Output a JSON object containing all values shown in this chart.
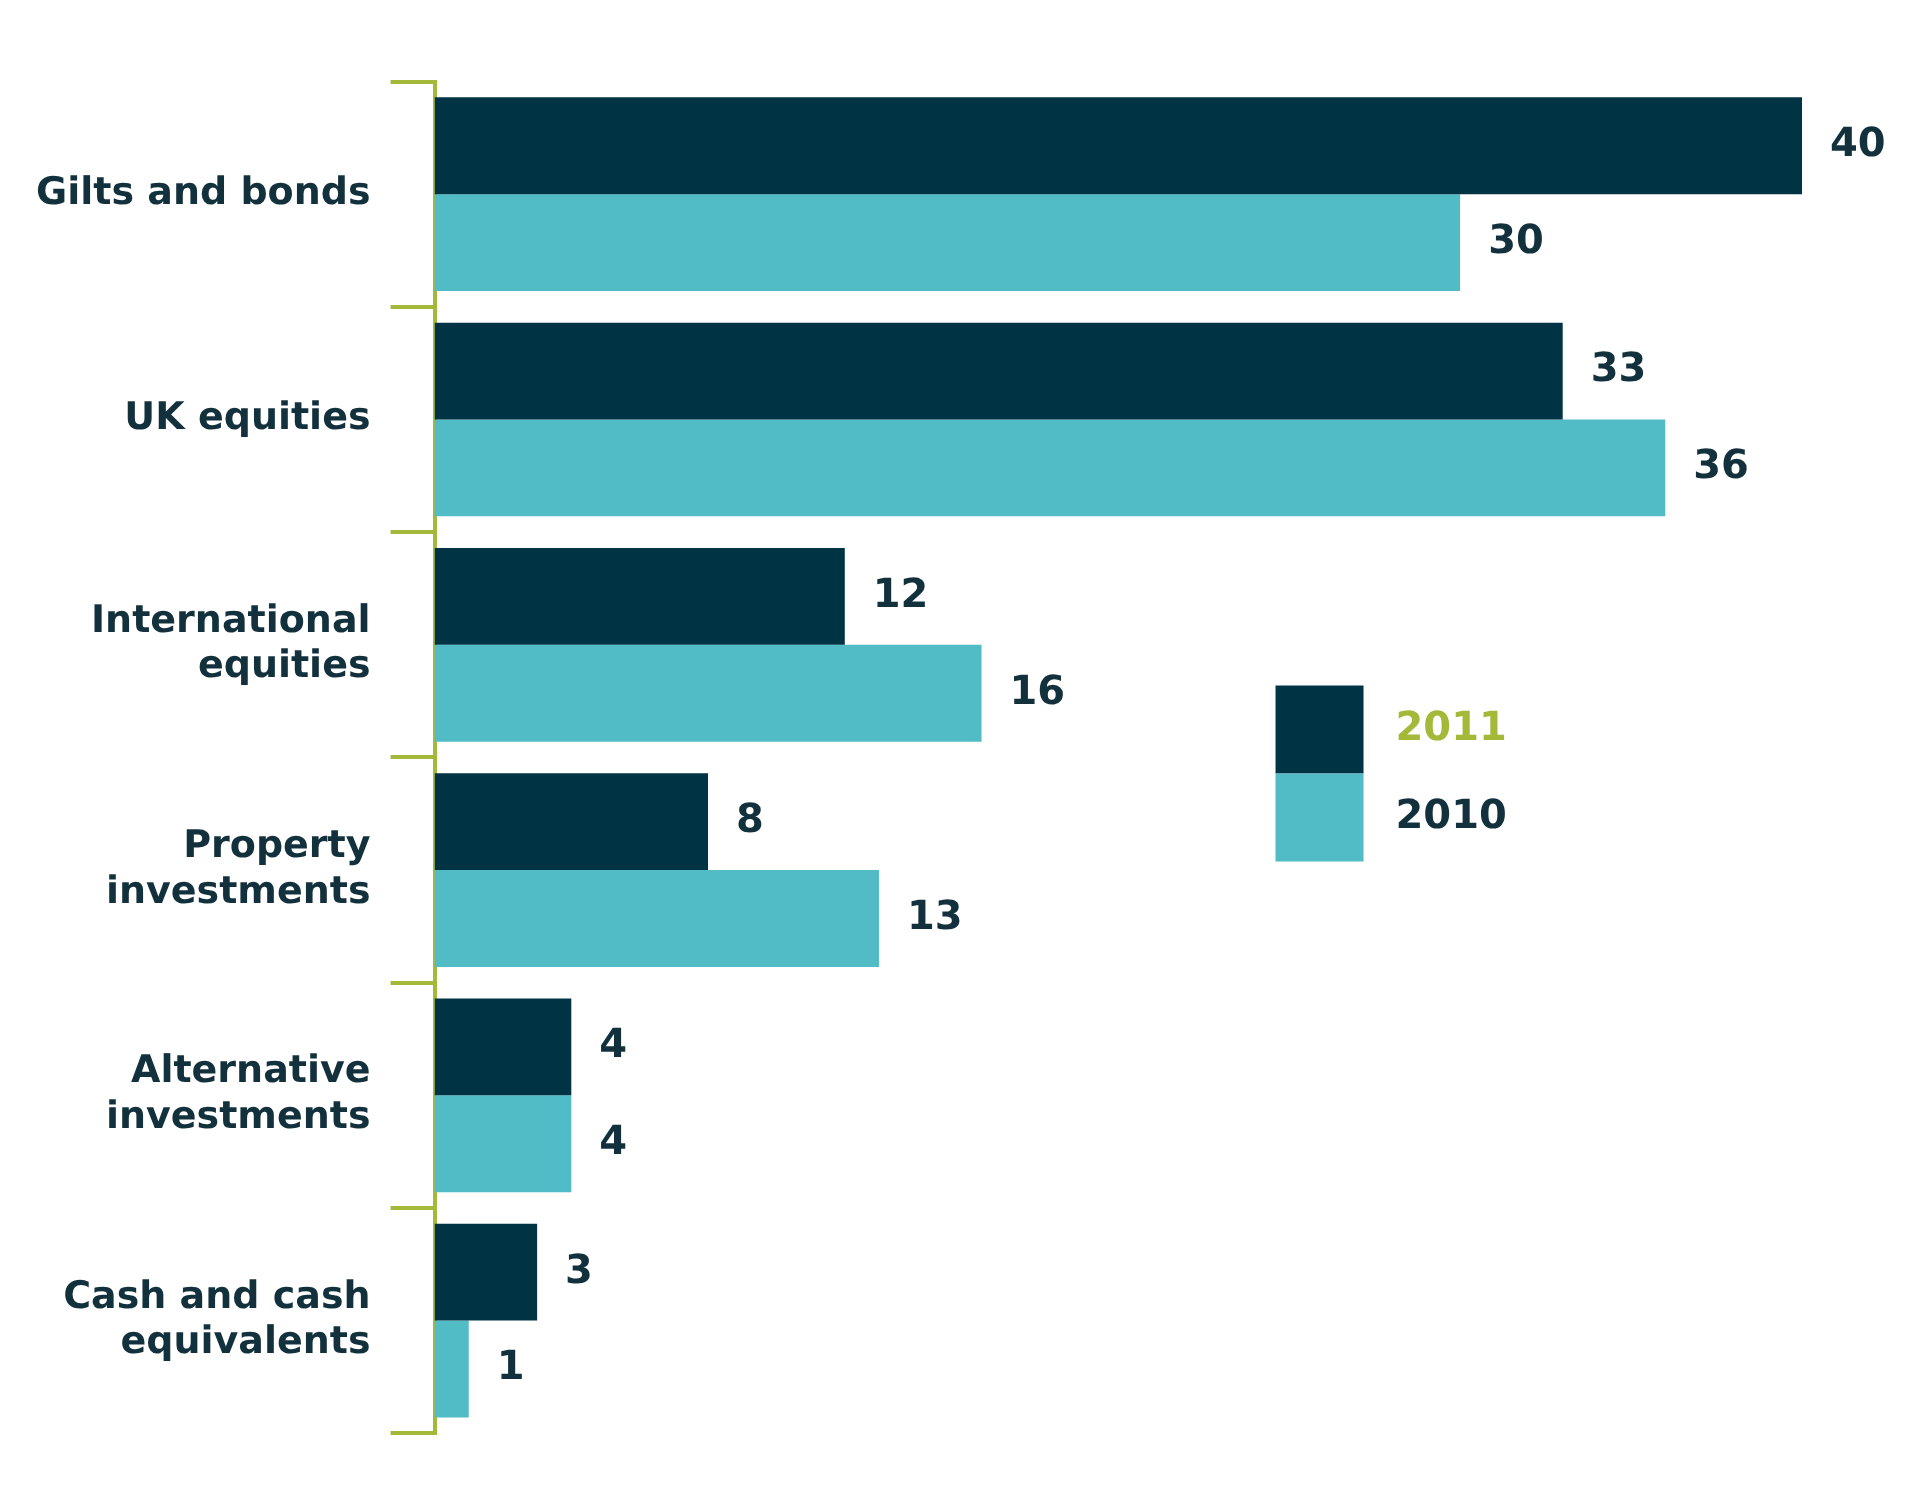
{
  "chart_data": {
    "type": "bar",
    "orientation": "horizontal",
    "categories": [
      "Gilts and bonds",
      "UK equities",
      "International equities",
      "Property investments",
      "Alternative investments",
      "Cash and cash equivalents"
    ],
    "series": [
      {
        "name": "2011",
        "color": "#003344",
        "values": [
          40,
          33,
          12,
          8,
          4,
          3
        ]
      },
      {
        "name": "2010",
        "color": "#52bcc6",
        "values": [
          30,
          36,
          16,
          13,
          4,
          1
        ]
      }
    ],
    "data_labels": true,
    "legend": "right",
    "grid": false
  }
}
